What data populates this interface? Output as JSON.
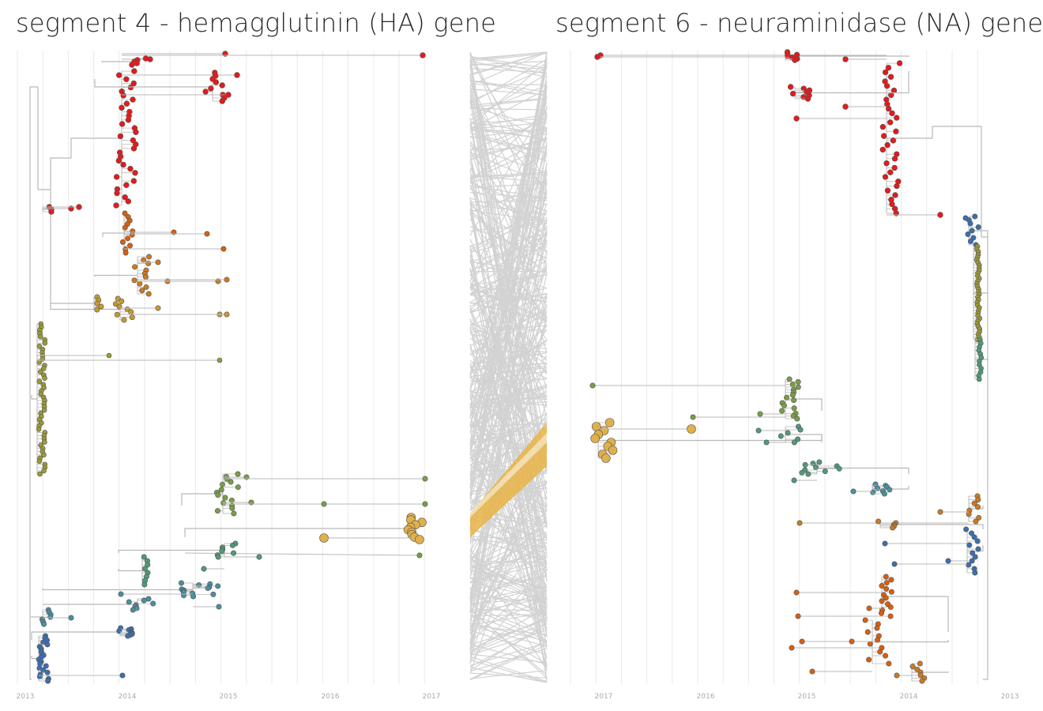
{
  "titles": {
    "left": "segment 4 - hemagglutinin (HA) gene",
    "right": "segment 6 - neuraminidase (NA) gene"
  },
  "axes": {
    "left_ticks": [
      "2013",
      "2014",
      "2015",
      "2016",
      "2017"
    ],
    "right_ticks": [
      "2017",
      "2016",
      "2015",
      "2014",
      "2013"
    ]
  },
  "colors": {
    "branch": "#b9b9b9",
    "grid": "#e9e9e9",
    "tanglegram_line": "#d2d2d2",
    "highlight_band": "#e8b447",
    "clades": [
      "#e41a1c",
      "#d95f0e",
      "#cc7a23",
      "#c79a2e",
      "#9a9a35",
      "#7a9e45",
      "#4f9a7a",
      "#4a8fa0",
      "#3b6fb0",
      "#e0b04a"
    ]
  },
  "chart_data": [
    {
      "type": "diagram",
      "title": "segment 4 - hemagglutinin (HA) gene",
      "x_axis": {
        "ticks": [
          "2013",
          "2014",
          "2015",
          "2016",
          "2017"
        ],
        "direction": "left-to-right"
      },
      "clades_top_to_bottom": [
        "red",
        "orange-red",
        "orange",
        "amber",
        "olive",
        "green",
        "teal",
        "blue"
      ]
    },
    {
      "type": "diagram",
      "title": "segment 6 - neuraminidase (NA) gene",
      "x_axis": {
        "ticks": [
          "2017",
          "2016",
          "2015",
          "2014",
          "2013"
        ],
        "direction": "right-to-left"
      },
      "clades_top_to_bottom": [
        "red",
        "blue",
        "olive",
        "green",
        "yellow",
        "teal",
        "orange",
        "blue",
        "orange-red"
      ]
    }
  ]
}
